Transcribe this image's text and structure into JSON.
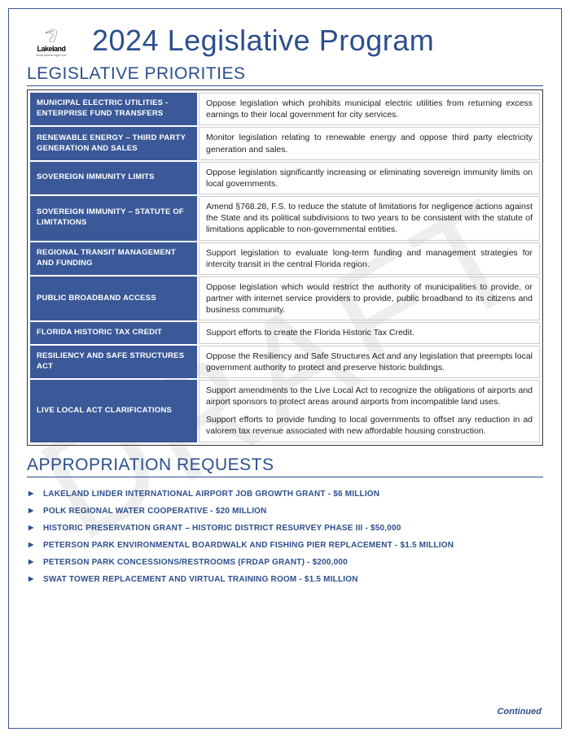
{
  "watermark": "DRAFT",
  "logo": {
    "brand": "Lakeland",
    "sub": "www.lakelandgov.net"
  },
  "title": "2024 Legislative Program",
  "section_priorities": "LEGISLATIVE PRIORITIES",
  "section_approp": "APPROPRIATION REQUESTS",
  "continued": "Continued",
  "colors": {
    "brand_blue": "#2c4f8c",
    "cell_blue": "#3b5998",
    "border": "#333333",
    "text": "#222222",
    "watermark": "#d0d0d0"
  },
  "priorities": [
    {
      "label": "MUNICIPAL ELECTRIC UTILITIES - ENTERPRISE FUND TRANSFERS",
      "desc": "Oppose legislation which prohibits municipal electric utilities from returning excess earnings to their local government for city services."
    },
    {
      "label": "RENEWABLE ENERGY – THIRD PARTY GENERATION AND SALES",
      "desc": "Monitor legislation relating to renewable energy and oppose third party electricity generation and sales."
    },
    {
      "label": "SOVEREIGN IMMUNITY LIMITS",
      "desc": "Oppose legislation significantly increasing or eliminating sovereign immunity limits on local governments."
    },
    {
      "label": "SOVEREIGN IMMUNITY – STATUTE OF LIMITATIONS",
      "desc": "Amend §768.28, F.S. to reduce the statute of limitations for negligence actions against the State and its political subdivisions to two years to be consistent with the statute of limitations applicable to non-governmental entities."
    },
    {
      "label": "REGIONAL TRANSIT MANAGEMENT AND FUNDING",
      "desc": "Support legislation to evaluate long-term funding and management strategies for intercity transit in the central Florida region."
    },
    {
      "label": "PUBLIC BROADBAND ACCESS",
      "desc": "Oppose legislation which would restrict the authority of municipalities to provide, or partner with internet service providers to provide, public broadband to its citizens and business community."
    },
    {
      "label": "FLORIDA HISTORIC TAX CREDIT",
      "desc": "Support efforts to create the Florida Historic Tax Credit."
    },
    {
      "label": "RESILIENCY AND SAFE STRUCTURES ACT",
      "desc": "Oppose the Resiliency and Safe Structures Act and any legislation that preempts local government authority to protect and preserve historic buildings."
    },
    {
      "label": "LIVE LOCAL ACT CLARIFICATIONS",
      "desc": "Support amendments to the Live Local Act to recognize the obligations of airports and airport sponsors to protect areas around airports from incompatible land uses.",
      "desc2": "Support efforts to provide funding to local governments to offset any reduction in ad valorem tax revenue associated with new affordable housing construction."
    }
  ],
  "appropriations": [
    "LAKELAND LINDER INTERNATIONAL AIRPORT JOB GROWTH GRANT - $6 MILLION",
    "POLK REGIONAL WATER COOPERATIVE - $20 MILLION",
    "HISTORIC PRESERVATION GRANT – HISTORIC DISTRICT RESURVEY PHASE III - $50,000",
    "PETERSON PARK ENVIRONMENTAL BOARDWALK AND FISHING PIER REPLACEMENT - $1.5 MILLION",
    "PETERSON PARK CONCESSIONS/RESTROOMS (FRDAP GRANT) - $200,000",
    "SWAT TOWER REPLACEMENT AND VIRTUAL TRAINING ROOM - $1.5 MILLION"
  ]
}
